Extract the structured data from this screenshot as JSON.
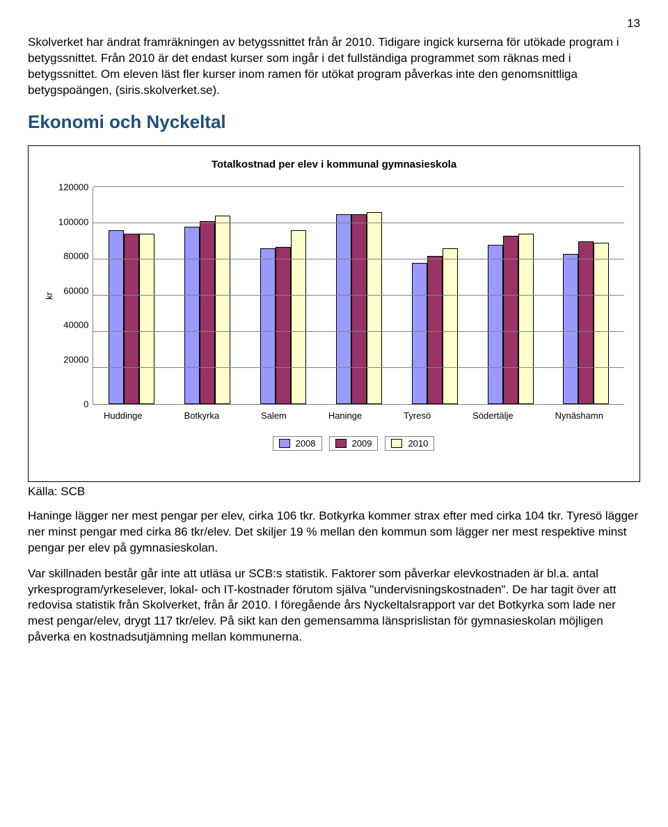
{
  "page_number": "13",
  "intro_paragraph": "Skolverket har ändrat framräkningen av betygssnittet från år 2010. Tidigare ingick kurserna för utökade program i betygssnittet. Från 2010 är det endast kurser som ingår i det fullständiga programmet som räknas med i betygssnittet. Om eleven läst fler kurser inom ramen för utökat program påverkas inte den genomsnittliga betygspoängen, (siris.skolverket.se).",
  "section_heading": "Ekonomi och Nyckeltal",
  "chart": {
    "type": "bar",
    "title": "Totalkostnad per elev i kommunal gymnasieskola",
    "y_axis_label": "kr",
    "ylim": [
      0,
      120000
    ],
    "ytick_step": 20000,
    "y_ticks": [
      "120000",
      "100000",
      "80000",
      "60000",
      "40000",
      "20000",
      "0"
    ],
    "categories": [
      "Huddinge",
      "Botkyrka",
      "Salem",
      "Haninge",
      "Tyresö",
      "Södertälje",
      "Nynäshamn"
    ],
    "series": [
      {
        "label": "2008",
        "color": "#9999ff",
        "values": [
          96000,
          98000,
          86000,
          105000,
          78000,
          88000,
          83000
        ]
      },
      {
        "label": "2009",
        "color": "#993366",
        "values": [
          94000,
          101000,
          87000,
          105000,
          82000,
          93000,
          90000
        ]
      },
      {
        "label": "2010",
        "color": "#ffffcc",
        "values": [
          94000,
          104000,
          96000,
          106000,
          86000,
          94000,
          89000
        ]
      }
    ],
    "grid_color": "#808080",
    "background_color": "#ffffff",
    "bar_border_color": "#000000",
    "legend_border_color": "#808080"
  },
  "source_label": "Källa: SCB",
  "para2": "Haninge lägger ner mest pengar per elev, cirka 106 tkr. Botkyrka kommer strax efter med cirka 104 tkr. Tyresö lägger ner minst pengar med cirka 86 tkr/elev. Det skiljer 19 % mellan den kommun som lägger ner mest respektive minst pengar per elev på gymnasieskolan.",
  "para3": "Var skillnaden består går inte att utläsa ur SCB:s statistik. Faktorer som påverkar elevkostnaden är bl.a. antal yrkesprogram/yrkeselever, lokal- och IT-kostnader förutom själva \"undervisningskostnaden\". De har tagit över att redovisa statistik från Skolverket, från år 2010. I föregående års Nyckeltalsrapport var det Botkyrka som lade ner mest pengar/elev, drygt 117 tkr/elev. På sikt kan den gemensamma länsprislistan för gymnasieskolan möjligen påverka en kostnadsutjämning mellan kommunerna."
}
